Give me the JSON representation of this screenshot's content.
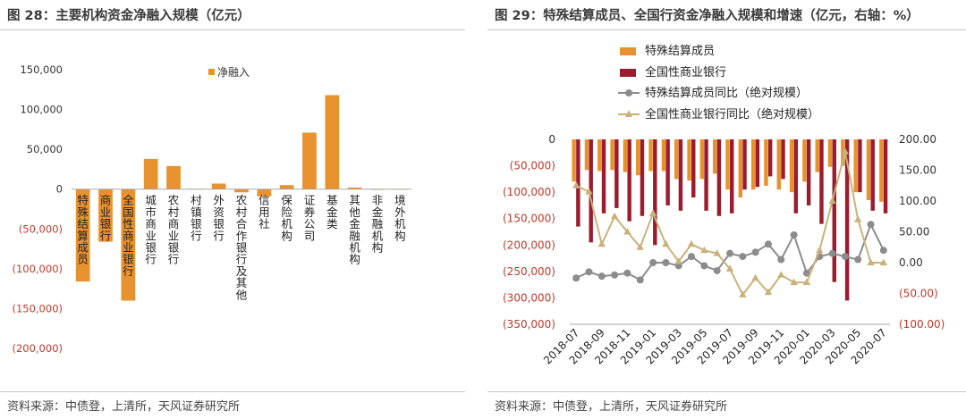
{
  "left": {
    "title": "图 28：主要机构资金净融入规模（亿元）",
    "source": "资料来源：中债登，上清所，天风证券研究所",
    "chart_data": {
      "type": "bar",
      "title": "主要机构资金净融入规模（亿元）",
      "categories": [
        "特殊结算成员",
        "商业银行",
        "全国性商业银行",
        "城市商业银行",
        "农村商业银行",
        "村镇银行",
        "外资银行",
        "农村合作银行及其他",
        "信用社",
        "保险机构",
        "证券公司",
        "基金类",
        "其他金融机构",
        "非金融机构",
        "境外机构"
      ],
      "series": [
        {
          "name": "净融入",
          "color": "#e8912f",
          "values": [
            -116000,
            -66000,
            -140000,
            38000,
            29000,
            500,
            7000,
            -4000,
            -9000,
            5000,
            71000,
            118000,
            2000,
            -500,
            300
          ]
        }
      ],
      "ylim": [
        -200000,
        150000
      ],
      "yticks": [
        150000,
        100000,
        50000,
        0,
        -50000,
        -100000,
        -150000,
        -200000
      ],
      "ytick_labels": [
        "150,000",
        "100,000",
        "50,000",
        "0",
        "(50,000)",
        "(100,000)",
        "(150,000)",
        "(200,000)"
      ],
      "legend_position": "top-right",
      "grid": false
    }
  },
  "right": {
    "title": "图 29：特殊结算成员、全国行资金净融入规模和增速（亿元，右轴：%）",
    "source": "资料来源：中债登，上清所，天风证券研究所",
    "chart_data": {
      "type": "bar",
      "title": "特殊结算成员、全国行资金净融入规模和增速（亿元，右轴：%）",
      "x": [
        "2018-07",
        "2018-08",
        "2018-09",
        "2018-10",
        "2018-11",
        "2018-12",
        "2019-01",
        "2019-02",
        "2019-03",
        "2019-04",
        "2019-05",
        "2019-06",
        "2019-07",
        "2019-08",
        "2019-09",
        "2019-10",
        "2019-11",
        "2019-12",
        "2020-01",
        "2020-02",
        "2020-03",
        "2020-04",
        "2020-05",
        "2020-06",
        "2020-07"
      ],
      "xtick_labels": [
        "2018-07",
        "2018-09",
        "2018-11",
        "2019-01",
        "2019-03",
        "2019-05",
        "2019-07",
        "2019-09",
        "2019-11",
        "2020-01",
        "2020-03",
        "2020-05",
        "2020-07"
      ],
      "series": [
        {
          "name": "特殊结算成员",
          "type": "bar",
          "axis": "left",
          "color": "#e8912f",
          "values": [
            -80000,
            -58000,
            -60000,
            -58000,
            -62000,
            -68000,
            -60000,
            -60000,
            -75000,
            -78000,
            -75000,
            -65000,
            -95000,
            -110000,
            -95000,
            -88000,
            -95000,
            -100000,
            -80000,
            -62000,
            -52000,
            -50000,
            -100000,
            -115000,
            -118000
          ]
        },
        {
          "name": "全国性商业银行",
          "type": "bar",
          "axis": "left",
          "color": "#9b1c2e",
          "values": [
            -165000,
            -195000,
            -140000,
            -130000,
            -155000,
            -145000,
            -200000,
            -125000,
            -135000,
            -110000,
            -135000,
            -145000,
            -140000,
            -95000,
            -90000,
            -70000,
            -75000,
            -140000,
            -125000,
            -160000,
            -270000,
            -305000,
            -100000,
            -135000,
            -140000
          ]
        },
        {
          "name": "特殊结算成员同比（绝对规模）",
          "type": "line",
          "axis": "right",
          "color": "#8c8c8c",
          "marker": "circle",
          "values": [
            -25,
            -15,
            -22,
            -20,
            -17,
            -28,
            0,
            0,
            -5,
            10,
            -5,
            -13,
            15,
            10,
            17,
            30,
            5,
            45,
            -17,
            10,
            15,
            10,
            5,
            62,
            20
          ]
        },
        {
          "name": "全国性商业银行同比（绝对规模）",
          "type": "line",
          "axis": "right",
          "color": "#c9b27a",
          "marker": "triangle",
          "values": [
            125,
            115,
            30,
            75,
            50,
            25,
            80,
            30,
            2,
            30,
            20,
            15,
            -10,
            -52,
            -25,
            -48,
            -20,
            -32,
            -32,
            20,
            100,
            180,
            70,
            0,
            0
          ]
        }
      ],
      "ylim": [
        -350000,
        0
      ],
      "yticks": [
        0,
        -50000,
        -100000,
        -150000,
        -200000,
        -250000,
        -300000,
        -350000
      ],
      "ytick_labels": [
        "0",
        "(50,000)",
        "(100,000)",
        "(150,000)",
        "(200,000)",
        "(250,000)",
        "(300,000)",
        "(350,000)"
      ],
      "y2lim": [
        -100,
        200
      ],
      "y2ticks": [
        200,
        150,
        100,
        50,
        0,
        -50,
        -100
      ],
      "y2tick_labels": [
        "200.00",
        "150.00",
        "100.00",
        "50.00",
        "0.00",
        "(50.00)",
        "(100.00)"
      ],
      "legend_position": "top-left",
      "grid": false
    }
  }
}
